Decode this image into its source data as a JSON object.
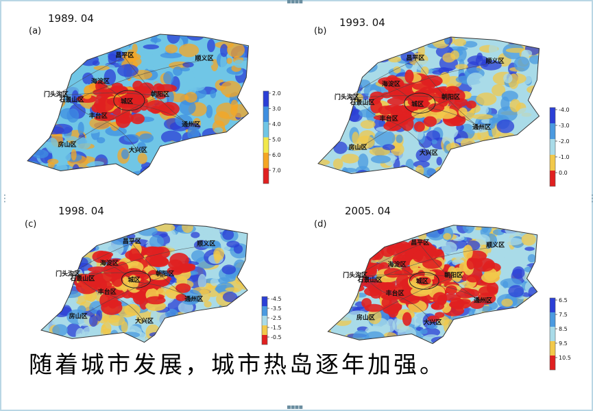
{
  "panels": [
    {
      "letter": "(a)",
      "date": "1989. 04",
      "legend_ticks": [
        "2.0",
        "3.0",
        "4.0",
        "5.0",
        "6.0",
        "7.0"
      ],
      "legend_colors": [
        "#2b3fd6",
        "#3f8fe0",
        "#70c6e6",
        "#f2e84a",
        "#f5a623",
        "#e02020"
      ],
      "districts": [
        "昌平区",
        "顺义区",
        "海淀区",
        "门头沟区",
        "石景山区",
        "城区",
        "朝阳区",
        "丰台区",
        "通州区",
        "房山区",
        "大兴区"
      ]
    },
    {
      "letter": "(b)",
      "date": "1993. 04",
      "legend_ticks": [
        "-4.0",
        "-3.0",
        "-2.0",
        "-1.0",
        "0.0"
      ],
      "legend_colors": [
        "#2b3fd6",
        "#4a9ae0",
        "#a9dbe8",
        "#f2c84a",
        "#e02020"
      ],
      "districts": [
        "昌平区",
        "顺义区",
        "海淀区",
        "门头沟区",
        "石景山区",
        "城区",
        "朝阳区",
        "丰台区",
        "通州区",
        "房山区",
        "大兴区"
      ]
    },
    {
      "letter": "(c)",
      "date": "1998. 04",
      "legend_ticks": [
        "-4.5",
        "-3.5",
        "-2.5",
        "-1.5",
        "-0.5"
      ],
      "legend_colors": [
        "#2b3fd6",
        "#4a9ae0",
        "#a9dbe8",
        "#f2c84a",
        "#e02020"
      ],
      "districts": [
        "昌平区",
        "顺义区",
        "海淀区",
        "门头沟区",
        "石景山区",
        "城区",
        "朝阳区",
        "丰台区",
        "通州区",
        "房山区",
        "大兴区"
      ]
    },
    {
      "letter": "(d)",
      "date": "2005. 04",
      "legend_ticks": [
        "6.5",
        "7.5",
        "8.5",
        "9.5",
        "10.5"
      ],
      "legend_colors": [
        "#2b3fd6",
        "#4a9ae0",
        "#a9dbe8",
        "#f2c84a",
        "#e02020"
      ],
      "districts": [
        "昌平区",
        "顺义区",
        "海淀区",
        "门头沟区",
        "石景山区",
        "城区",
        "朝阳区",
        "丰台区",
        "通州区",
        "房山区",
        "大兴区"
      ]
    }
  ],
  "caption": "随着城市发展，城市热岛逐年加强。",
  "handles": {
    "top": "▪▪▪▪",
    "bottom": "▪▪▪▪",
    "left": "⋮",
    "right": "⋮"
  }
}
